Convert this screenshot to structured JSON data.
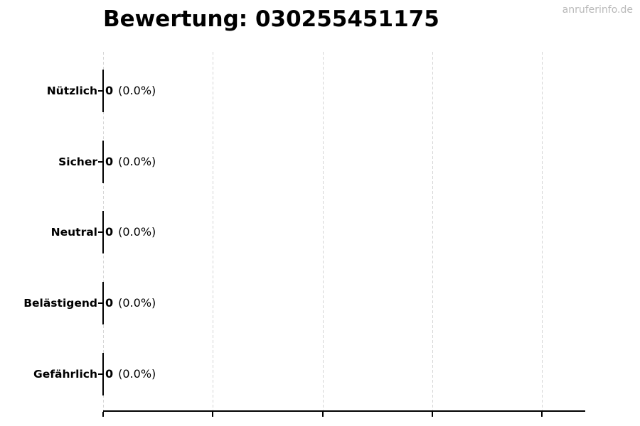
{
  "watermark": "anruferinfo.de",
  "chart_data": {
    "type": "bar",
    "orientation": "horizontal",
    "title": "Bewertung: 030255451175",
    "categories": [
      "Nützlich",
      "Sicher",
      "Neutral",
      "Belästigend",
      "Gefährlich"
    ],
    "values": [
      0,
      0,
      0,
      0,
      0
    ],
    "percentages": [
      "0.0%",
      "0.0%",
      "0.0%",
      "0.0%",
      "0.0%"
    ],
    "rows": [
      {
        "label": "Nützlich",
        "value": "0",
        "pct": "(0.0%)"
      },
      {
        "label": "Sicher",
        "value": "0",
        "pct": "(0.0%)"
      },
      {
        "label": "Neutral",
        "value": "0",
        "pct": "(0.0%)"
      },
      {
        "label": "Belästigend",
        "value": "0",
        "pct": "(0.0%)"
      },
      {
        "label": "Gefährlich",
        "value": "0",
        "pct": "(0.0%)"
      }
    ],
    "xlabel": "",
    "ylabel": "",
    "xlim": [
      0,
      4.4
    ],
    "xticks": [
      0,
      1,
      2,
      3,
      4
    ],
    "xtick_labels_visible": false,
    "grid": "vertical-dashed",
    "legend": "none",
    "colors": {
      "bar": "#000000",
      "grid": "#d5d5d5",
      "text": "#000000",
      "watermark": "#b9b9b9",
      "background": "#ffffff"
    }
  }
}
